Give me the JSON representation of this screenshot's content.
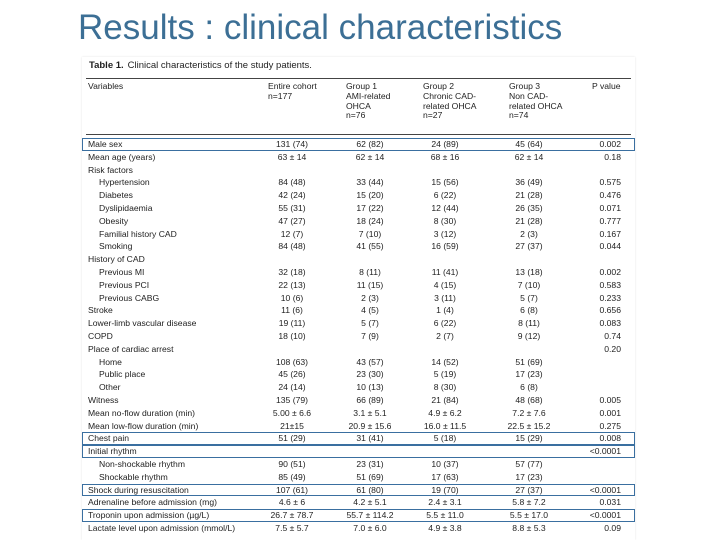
{
  "slide": {
    "title": "Results : clinical characteristics"
  },
  "caption": {
    "label": "Table 1.",
    "text": "Clinical characteristics of the study patients."
  },
  "columns": [
    {
      "lines": [
        "Variables"
      ]
    },
    {
      "lines": [
        "Entire cohort",
        "n=177"
      ]
    },
    {
      "lines": [
        "Group 1",
        "AMI-related",
        "OHCA",
        "n=76"
      ]
    },
    {
      "lines": [
        "Group 2",
        "Chronic CAD-",
        "related OHCA",
        "n=27"
      ]
    },
    {
      "lines": [
        "Group 3",
        "Non CAD-",
        "related OHCA",
        "n=74"
      ]
    },
    {
      "lines": [
        "P value"
      ]
    }
  ],
  "rows": [
    {
      "label": "Male sex",
      "indent": false,
      "highlight": true,
      "v": [
        "131 (74)",
        "62 (82)",
        "24 (89)",
        "45 (64)"
      ],
      "p": "0.002"
    },
    {
      "label": "Mean age (years)",
      "indent": false,
      "highlight": false,
      "v": [
        "63 ± 14",
        "62 ± 14",
        "68 ± 16",
        "62 ± 14"
      ],
      "p": "0.18"
    },
    {
      "label": "Risk factors",
      "indent": false,
      "highlight": false,
      "v": [
        "",
        "",
        "",
        ""
      ],
      "p": ""
    },
    {
      "label": "Hypertension",
      "indent": true,
      "highlight": false,
      "v": [
        "84 (48)",
        "33 (44)",
        "15 (56)",
        "36 (49)"
      ],
      "p": "0.575"
    },
    {
      "label": "Diabetes",
      "indent": true,
      "highlight": false,
      "v": [
        "42 (24)",
        "15 (20)",
        "6 (22)",
        "21 (28)"
      ],
      "p": "0.476"
    },
    {
      "label": "Dyslipidaemia",
      "indent": true,
      "highlight": false,
      "v": [
        "55 (31)",
        "17 (22)",
        "12 (44)",
        "26 (35)"
      ],
      "p": "0.071"
    },
    {
      "label": "Obesity",
      "indent": true,
      "highlight": false,
      "v": [
        "47 (27)",
        "18 (24)",
        "8 (30)",
        "21 (28)"
      ],
      "p": "0.777"
    },
    {
      "label": "Familial history CAD",
      "indent": true,
      "highlight": false,
      "v": [
        "12 (7)",
        "7 (10)",
        "3 (12)",
        "2 (3)"
      ],
      "p": "0.167"
    },
    {
      "label": "Smoking",
      "indent": true,
      "highlight": false,
      "v": [
        "84 (48)",
        "41 (55)",
        "16 (59)",
        "27 (37)"
      ],
      "p": "0.044"
    },
    {
      "label": "History of CAD",
      "indent": false,
      "highlight": false,
      "v": [
        "",
        "",
        "",
        ""
      ],
      "p": ""
    },
    {
      "label": "Previous MI",
      "indent": true,
      "highlight": false,
      "v": [
        "32 (18)",
        "8 (11)",
        "11 (41)",
        "13 (18)"
      ],
      "p": "0.002"
    },
    {
      "label": "Previous PCI",
      "indent": true,
      "highlight": false,
      "v": [
        "22 (13)",
        "11 (15)",
        "4 (15)",
        "7 (10)"
      ],
      "p": "0.583"
    },
    {
      "label": "Previous CABG",
      "indent": true,
      "highlight": false,
      "v": [
        "10 (6)",
        "2 (3)",
        "3 (11)",
        "5 (7)"
      ],
      "p": "0.233"
    },
    {
      "label": "Stroke",
      "indent": false,
      "highlight": false,
      "v": [
        "11 (6)",
        "4 (5)",
        "1 (4)",
        "6 (8)"
      ],
      "p": "0.656"
    },
    {
      "label": "Lower-limb vascular disease",
      "indent": false,
      "highlight": false,
      "v": [
        "19 (11)",
        "5 (7)",
        "6 (22)",
        "8 (11)"
      ],
      "p": "0.083"
    },
    {
      "label": "COPD",
      "indent": false,
      "highlight": false,
      "v": [
        "18 (10)",
        "7 (9)",
        "2 (7)",
        "9 (12)"
      ],
      "p": "0.74"
    },
    {
      "label": "Place of cardiac arrest",
      "indent": false,
      "highlight": false,
      "v": [
        "",
        "",
        "",
        ""
      ],
      "p": "0.20"
    },
    {
      "label": "Home",
      "indent": true,
      "highlight": false,
      "v": [
        "108 (63)",
        "43 (57)",
        "14 (52)",
        "51 (69)"
      ],
      "p": ""
    },
    {
      "label": "Public place",
      "indent": true,
      "highlight": false,
      "v": [
        "45 (26)",
        "23 (30)",
        "5 (19)",
        "17 (23)"
      ],
      "p": ""
    },
    {
      "label": "Other",
      "indent": true,
      "highlight": false,
      "v": [
        "24 (14)",
        "10 (13)",
        "8 (30)",
        "6 (8)"
      ],
      "p": ""
    },
    {
      "label": "Witness",
      "indent": false,
      "highlight": false,
      "v": [
        "135 (79)",
        "66 (89)",
        "21 (84)",
        "48 (68)"
      ],
      "p": "0.005"
    },
    {
      "label": "Mean no-flow duration (min)",
      "indent": false,
      "highlight": false,
      "v": [
        "5.00 ± 6.6",
        "3.1 ± 5.1",
        "4.9 ± 6.2",
        "7.2 ± 7.6"
      ],
      "p": "0.001"
    },
    {
      "label": "Mean low-flow duration (min)",
      "indent": false,
      "highlight": false,
      "v": [
        "21±15",
        "20.9 ± 15.6",
        "16.0 ± 11.5",
        "22.5 ± 15.2"
      ],
      "p": "0.275"
    },
    {
      "label": "Chest pain",
      "indent": false,
      "highlight": true,
      "v": [
        "51 (29)",
        "31 (41)",
        "5 (18)",
        "15 (29)"
      ],
      "p": "0.008"
    },
    {
      "label": "Initial rhythm",
      "indent": false,
      "highlight": true,
      "v": [
        "",
        "",
        "",
        ""
      ],
      "p": "<0.0001"
    },
    {
      "label": "Non-shockable rhythm",
      "indent": true,
      "highlight": false,
      "v": [
        "90 (51)",
        "23 (31)",
        "10 (37)",
        "57 (77)"
      ],
      "p": ""
    },
    {
      "label": "Shockable rhythm",
      "indent": true,
      "highlight": false,
      "v": [
        "85 (49)",
        "51 (69)",
        "17 (63)",
        "17 (23)"
      ],
      "p": ""
    },
    {
      "label": "Shock during resuscitation",
      "indent": false,
      "highlight": true,
      "v": [
        "107 (61)",
        "61 (80)",
        "19 (70)",
        "27 (37)"
      ],
      "p": "<0.0001"
    },
    {
      "label": "Adrenaline before admission (mg)",
      "indent": false,
      "highlight": false,
      "v": [
        "4.6 ± 6",
        "4.2 ± 5.1",
        "2.4 ± 3.1",
        "5.8 ± 7.2"
      ],
      "p": "0.031"
    },
    {
      "label": "Troponin upon admission (µg/L)",
      "indent": false,
      "highlight": true,
      "v": [
        "26.7 ± 78.7",
        "55.7 ± 114.2",
        "5.5 ± 11.0",
        "5.5 ± 17.0"
      ],
      "p": "<0.0001"
    },
    {
      "label": "Lactate level upon admission (mmol/L)",
      "indent": false,
      "highlight": false,
      "v": [
        "7.5 ± 5.7",
        "7.0 ± 6.0",
        "4.9 ± 3.8",
        "8.8 ± 5.3"
      ],
      "p": "0.09"
    }
  ]
}
